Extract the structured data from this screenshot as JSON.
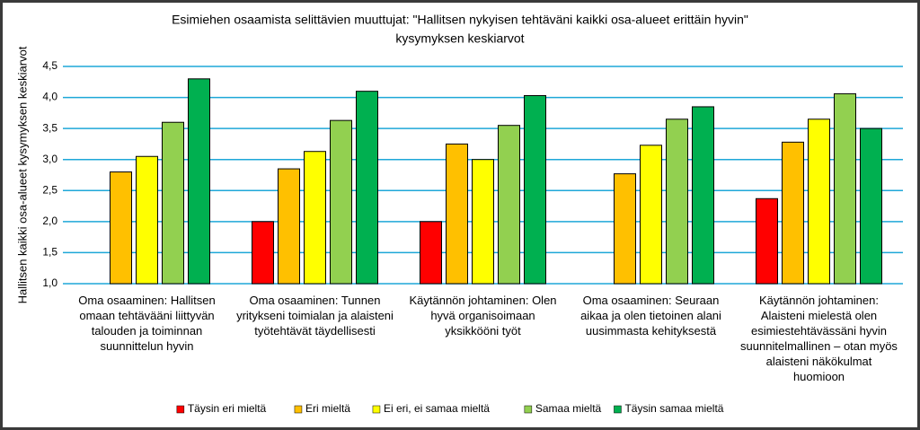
{
  "chart_data": {
    "type": "bar",
    "title": [
      "Esimiehen osaamista selittävien muuttujat: \"Hallitsen nykyisen tehtäväni kaikki osa-alueet erittäin hyvin\"",
      "kysymyksen keskiarvot"
    ],
    "y_label": "Hallitsen kaikki osa-alueet kysymyksen keskiarvot",
    "categories": [
      "Oma osaaminen: Hallitsen omaan tehtävääni liittyvän talouden ja toiminnan suunnittelun hyvin",
      "Oma osaaminen: Tunnen yritykseni toimialan ja alaisteni työtehtävät täydellisesti",
      "Käytännön johtaminen: Olen hyvä organisoimaan yksikkööni työt",
      "Oma osaaminen: Seuraan aikaa ja olen tietoinen alani uusimmasta kehityksestä",
      "Käytännön johtaminen: Alaisteni mielestä olen esimiestehtävässäni hyvin suunnitelmallinen – otan myös alaisteni näkökulmat huomioon"
    ],
    "series": [
      {
        "name": "Täysin eri mieltä",
        "color": "#ff0000",
        "values": [
          null,
          2.0,
          2.0,
          null,
          2.37
        ]
      },
      {
        "name": "Eri mieltä",
        "color": "#ffc000",
        "values": [
          2.8,
          2.85,
          3.25,
          2.77,
          3.28
        ]
      },
      {
        "name": "Ei eri, ei samaa mieltä",
        "color": "#ffff00",
        "values": [
          3.05,
          3.13,
          3.0,
          3.23,
          3.65
        ]
      },
      {
        "name": "Samaa mieltä",
        "color": "#92d050",
        "values": [
          3.6,
          3.63,
          3.55,
          3.65,
          4.06
        ]
      },
      {
        "name": "Täysin samaa mieltä",
        "color": "#00b050",
        "values": [
          4.3,
          4.1,
          4.03,
          3.85,
          3.5
        ]
      }
    ],
    "ylim": [
      1.0,
      4.5
    ],
    "yticks": [
      {
        "value": 1.0,
        "label": "1,0"
      },
      {
        "value": 1.5,
        "label": "1,5"
      },
      {
        "value": 2.0,
        "label": "2,0"
      },
      {
        "value": 2.5,
        "label": "2,5"
      },
      {
        "value": 3.0,
        "label": "3,0"
      },
      {
        "value": 3.5,
        "label": "3,5"
      },
      {
        "value": 4.0,
        "label": "4,0"
      },
      {
        "value": 4.5,
        "label": "4,5"
      }
    ],
    "grid": true,
    "legend": "bottom"
  }
}
